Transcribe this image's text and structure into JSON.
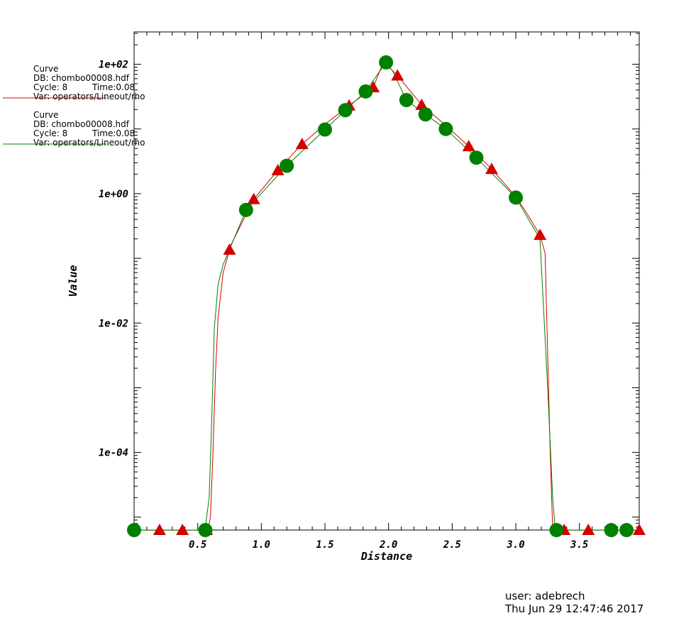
{
  "legend": [
    {
      "title": "Curve",
      "db": "DB: chombo00008.hdf",
      "cycle": "Cycle: 8",
      "time": "Time:0.08",
      "var": "Var: operators/Lineout/rho",
      "color": "#d40000"
    },
    {
      "title": "Curve",
      "db": "DB: chombo00008.hdf",
      "cycle": "Cycle: 8",
      "time": "Time:0.08",
      "var": "Var: operators/Lineout/rho",
      "color": "#008000"
    }
  ],
  "footer": {
    "user": "user: adebrech",
    "date": "Thu Jun 29 12:47:46 2017"
  },
  "chart_data": {
    "type": "line",
    "xlabel": "Distance",
    "ylabel": "Value",
    "xlim": [
      0.0,
      3.97
    ],
    "ylim_log10": [
      -5.2,
      2.5
    ],
    "yscale": "log",
    "x_ticks": [
      "0.5",
      "1.0",
      "1.5",
      "2.0",
      "2.5",
      "3.0",
      "3.5"
    ],
    "x_tick_values": [
      0.5,
      1.0,
      1.5,
      2.0,
      2.5,
      3.0,
      3.5
    ],
    "y_ticks": [
      "1e-04",
      "1e-02",
      "1e+00",
      "1e+02"
    ],
    "y_tick_values": [
      -4,
      -2,
      0,
      2
    ],
    "grid": false,
    "series": [
      {
        "color": "#d40000",
        "marker": "triangle",
        "x": [
          0.0,
          0.2,
          0.4,
          0.58,
          0.6,
          0.62,
          0.64,
          0.66,
          0.7,
          0.76,
          0.94,
          1.13,
          1.31,
          1.5,
          1.69,
          1.88,
          1.96,
          2.07,
          2.26,
          2.44,
          2.63,
          2.81,
          3.0,
          3.08,
          3.19,
          3.23,
          3.27,
          3.29,
          3.31,
          3.4,
          3.58,
          3.78,
          3.97
        ],
        "y": [
          6.3e-06,
          6.3e-06,
          6.3e-06,
          6.3e-06,
          1e-05,
          0.0001,
          0.0018,
          0.012,
          0.06,
          0.16,
          0.82,
          2.3,
          5.6,
          11.8,
          23.0,
          44.0,
          110.0,
          67.0,
          23.5,
          11.8,
          5.4,
          2.4,
          0.9,
          0.52,
          0.23,
          0.12,
          0.0001,
          6.3e-06,
          6.3e-06,
          6.3e-06,
          6.3e-06,
          6.3e-06,
          6.3e-06
        ]
      },
      {
        "color": "#008000",
        "marker": "circle",
        "x": [
          0.0,
          0.28,
          0.56,
          0.57,
          0.59,
          0.61,
          0.63,
          0.66,
          0.7,
          0.88,
          1.2,
          1.5,
          1.66,
          1.82,
          1.98,
          2.03,
          2.14,
          2.29,
          2.45,
          2.69,
          3.0,
          3.1,
          3.19,
          3.25,
          3.29,
          3.31,
          3.5,
          3.75,
          3.87,
          3.97
        ],
        "y": [
          6.3e-06,
          6.3e-06,
          6.3e-06,
          1e-05,
          2e-05,
          0.0003,
          0.008,
          0.04,
          0.08,
          0.56,
          2.7,
          9.8,
          19.5,
          38.0,
          107.0,
          80.0,
          28.0,
          16.8,
          10.0,
          3.6,
          0.87,
          0.4,
          0.2,
          0.001,
          2e-05,
          6.3e-06,
          6.3e-06,
          6.3e-06,
          6.3e-06,
          6.3e-06
        ]
      }
    ],
    "markers": [
      {
        "series": 0,
        "x": [
          0.2,
          0.38,
          0.57,
          0.75,
          0.94,
          1.13,
          1.32,
          1.69,
          1.88,
          2.07,
          2.26,
          2.63,
          2.81,
          3.0,
          3.19,
          3.38,
          3.57,
          3.97
        ]
      },
      {
        "series": 1,
        "x": [
          0.0,
          0.56,
          0.88,
          1.2,
          1.5,
          1.66,
          1.82,
          1.98,
          2.14,
          2.29,
          2.45,
          2.69,
          3.0,
          3.32,
          3.75,
          3.87
        ]
      }
    ]
  }
}
